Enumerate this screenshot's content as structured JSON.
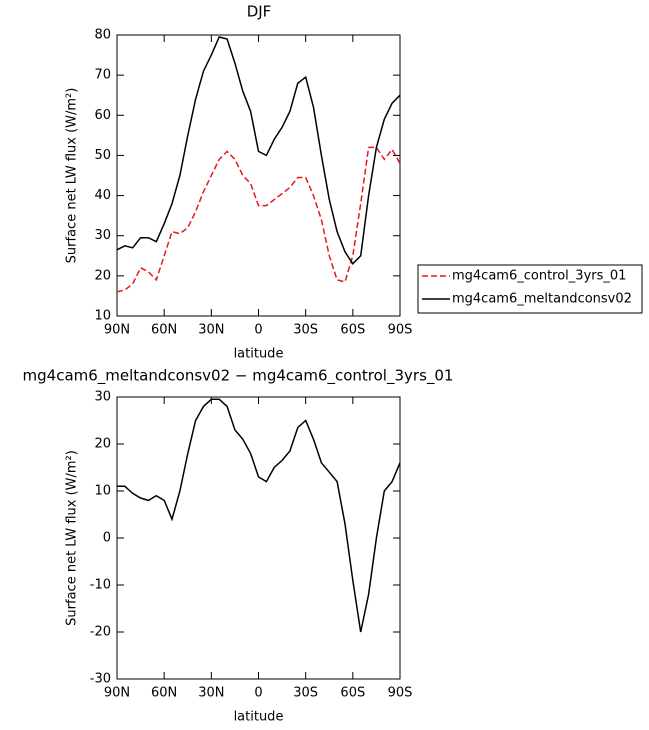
{
  "chart_data": [
    {
      "type": "line",
      "title": "DJF",
      "x_label": "latitude",
      "y_label": "Surface net LW flux (W/m²)",
      "x": [
        90,
        85,
        80,
        75,
        70,
        65,
        60,
        55,
        50,
        45,
        40,
        35,
        30,
        25,
        20,
        15,
        10,
        5,
        0,
        -5,
        -10,
        -15,
        -20,
        -25,
        -30,
        -35,
        -40,
        -45,
        -50,
        -55,
        -60,
        -65,
        -70,
        -75,
        -80,
        -85,
        -90
      ],
      "series": [
        {
          "name": "mg4cam6_control_3yrs_01",
          "color": "#e41a1c",
          "dashed": true,
          "values": [
            16,
            16.5,
            18,
            22,
            21,
            19,
            25,
            31,
            30.5,
            32,
            36,
            41,
            45,
            49,
            51,
            49,
            45,
            43,
            37.5,
            37.5,
            39,
            40.5,
            42,
            44.5,
            44.5,
            40,
            34,
            25,
            19,
            18.5,
            25,
            38,
            52,
            52,
            49,
            51.5,
            48
          ]
        },
        {
          "name": "mg4cam6_meltandconsv02",
          "color": "#000000",
          "dashed": false,
          "values": [
            26.5,
            27.5,
            27,
            29.5,
            29.5,
            28.5,
            33,
            38,
            45,
            55,
            64,
            71,
            75,
            79.5,
            79,
            73,
            66,
            61,
            51,
            50,
            54,
            57,
            61,
            68,
            69.5,
            62,
            50,
            39,
            31,
            26,
            23,
            25,
            40,
            52,
            59,
            63,
            65
          ]
        }
      ],
      "xlim": [
        90,
        -90
      ],
      "xticks": [
        {
          "value": 90,
          "label": "90N"
        },
        {
          "value": 60,
          "label": "60N"
        },
        {
          "value": 30,
          "label": "30N"
        },
        {
          "value": 0,
          "label": "0"
        },
        {
          "value": -30,
          "label": "30S"
        },
        {
          "value": -60,
          "label": "60S"
        },
        {
          "value": -90,
          "label": "90S"
        }
      ],
      "ylim": [
        10,
        80
      ],
      "yticks": [
        10,
        20,
        30,
        40,
        50,
        60,
        70,
        80
      ],
      "legend": "right"
    },
    {
      "type": "line",
      "title": "mg4cam6_meltandconsv02 − mg4cam6_control_3yrs_01",
      "x_label": "latitude",
      "y_label": "Surface net LW flux (W/m²)",
      "x": [
        90,
        85,
        80,
        75,
        70,
        65,
        60,
        55,
        50,
        45,
        40,
        35,
        30,
        25,
        20,
        15,
        10,
        5,
        0,
        -5,
        -10,
        -15,
        -20,
        -25,
        -30,
        -35,
        -40,
        -45,
        -50,
        -55,
        -60,
        -65,
        -70,
        -75,
        -80,
        -85,
        -90
      ],
      "series": [
        {
          "color": "#000000",
          "dashed": false,
          "values": [
            11,
            11,
            9.5,
            8.5,
            8,
            9,
            8,
            4,
            10,
            18,
            25,
            28,
            29.5,
            29.5,
            28,
            23,
            21,
            18,
            13,
            12,
            15,
            16.5,
            18.5,
            23.5,
            25,
            21,
            16,
            14,
            12,
            3,
            -9,
            -20,
            -12,
            0,
            10,
            12,
            16
          ]
        }
      ],
      "xlim": [
        90,
        -90
      ],
      "xticks": [
        {
          "value": 90,
          "label": "90N"
        },
        {
          "value": 60,
          "label": "60N"
        },
        {
          "value": 30,
          "label": "30N"
        },
        {
          "value": 0,
          "label": "0"
        },
        {
          "value": -30,
          "label": "30S"
        },
        {
          "value": -60,
          "label": "60S"
        },
        {
          "value": -90,
          "label": "90S"
        }
      ],
      "ylim": [
        -30,
        30
      ],
      "yticks": [
        -30,
        -20,
        -10,
        0,
        10,
        20,
        30
      ]
    }
  ]
}
